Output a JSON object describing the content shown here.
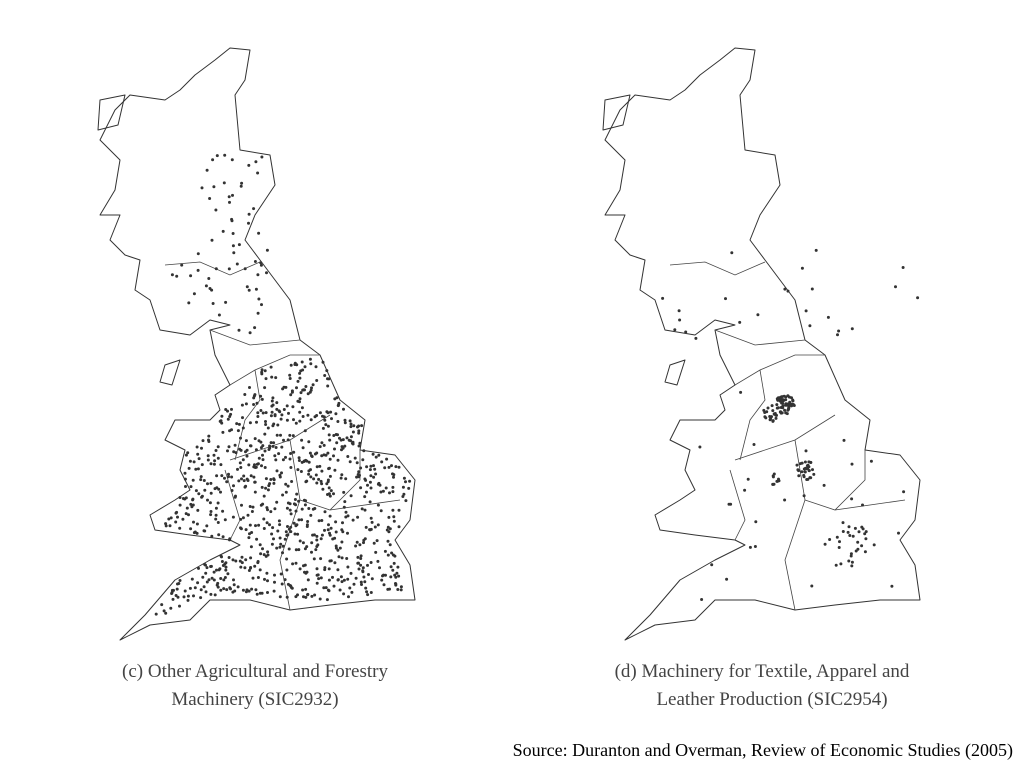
{
  "panels": [
    {
      "caption_lines": [
        "(c) Other Agricultural and Forestry",
        "Machinery (SIC2932)"
      ]
    },
    {
      "caption_lines": [
        "(d) Machinery for Textile, Apparel and",
        "Leather Production (SIC2954)"
      ]
    }
  ],
  "source": "Source: Duranton and Overman, Review of Economic Studies (2005)"
}
